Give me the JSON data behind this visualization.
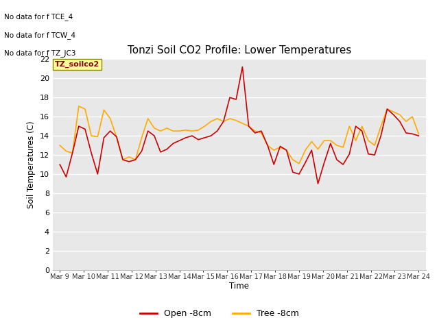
{
  "title": "Tonzi Soil CO2 Profile: Lower Temperatures",
  "ylabel": "Soil Temperatures (C)",
  "xlabel": "Time",
  "no_data_texts": [
    "No data for f TCE_4",
    "No data for f TCW_4",
    "No data for f TZ_JC3"
  ],
  "legend_box_text": "TZ_soilco2",
  "ylim": [
    0,
    22
  ],
  "yticks": [
    0,
    2,
    4,
    6,
    8,
    10,
    12,
    14,
    16,
    18,
    20,
    22
  ],
  "xtick_labels": [
    "Mar 9",
    "Mar 10",
    "Mar 11",
    "Mar 12",
    "Mar 13",
    "Mar 14",
    "Mar 15",
    "Mar 16",
    "Mar 17",
    "Mar 18",
    "Mar 19",
    "Mar 20",
    "Mar 21",
    "Mar 22",
    "Mar 23",
    "Mar 24"
  ],
  "fig_bg_color": "#ffffff",
  "plot_bg_color": "#e8e8e8",
  "open_color": "#cc0000",
  "tree_color": "#ffaa00",
  "open_label": "Open -8cm",
  "tree_label": "Tree -8cm",
  "open_data": [
    11.0,
    9.7,
    12.2,
    15.0,
    14.7,
    12.2,
    10.0,
    13.8,
    14.5,
    13.9,
    11.5,
    11.3,
    11.5,
    12.4,
    14.5,
    14.0,
    12.3,
    12.6,
    13.2,
    13.5,
    13.8,
    14.0,
    13.6,
    13.8,
    14.0,
    14.5,
    15.5,
    18.0,
    17.8,
    21.2,
    15.0,
    14.3,
    14.5,
    13.0,
    11.0,
    12.9,
    12.5,
    10.2,
    10.0,
    11.2,
    12.5,
    9.0,
    11.2,
    13.2,
    11.5,
    11.0,
    12.1,
    15.0,
    14.5,
    12.1,
    12.0,
    14.0,
    16.8,
    16.2,
    15.5,
    14.3,
    14.2,
    14.0
  ],
  "tree_data": [
    13.0,
    12.4,
    12.2,
    17.1,
    16.8,
    14.0,
    13.9,
    16.7,
    15.8,
    13.9,
    11.5,
    11.8,
    11.5,
    13.8,
    15.8,
    14.8,
    14.5,
    14.8,
    14.5,
    14.5,
    14.6,
    14.5,
    14.6,
    15.0,
    15.5,
    15.8,
    15.5,
    15.8,
    15.6,
    15.3,
    15.0,
    14.5,
    14.3,
    13.0,
    12.5,
    12.8,
    12.5,
    11.5,
    11.1,
    12.5,
    13.4,
    12.6,
    13.5,
    13.5,
    13.0,
    12.8,
    15.0,
    13.5,
    15.0,
    13.5,
    13.0,
    15.0,
    16.8,
    16.5,
    16.2,
    15.5,
    16.0,
    14.2
  ]
}
